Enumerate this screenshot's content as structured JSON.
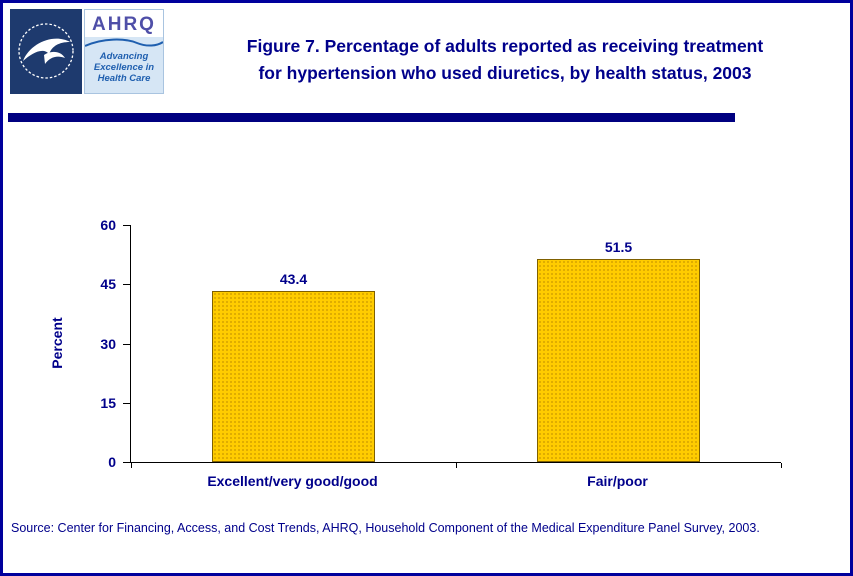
{
  "page": {
    "background": "#FFFFFF",
    "border_color": "#00009C",
    "accent_navy": "#000080",
    "text_navy": "#00008B"
  },
  "header": {
    "title_line1": "Figure 7. Percentage of adults reported as receiving treatment",
    "title_line2": "for hypertension who used diuretics, by health status, 2003"
  },
  "logos": {
    "ahrq_acronym": "AHRQ",
    "ahrq_tagline_line1": "Advancing",
    "ahrq_tagline_line2": "Excellence in",
    "ahrq_tagline_line3": "Health Care"
  },
  "chart_data": {
    "type": "bar",
    "title": "Figure 7. Percentage of adults reported as receiving treatment for hypertension who used diuretics, by health status, 2003",
    "categories": [
      "Excellent/very good/good",
      "Fair/poor"
    ],
    "values": [
      43.4,
      51.5
    ],
    "xlabel": "",
    "ylabel": "Percent",
    "ylim": [
      0,
      60
    ],
    "yticks": [
      0,
      15,
      30,
      45,
      60
    ],
    "grid": false,
    "legend": "none",
    "bar_color": "#FFCC00",
    "bar_border_color": "#7F6000",
    "value_label_color": "#00008B"
  },
  "source": {
    "text": "Source: Center for Financing, Access, and Cost Trends, AHRQ, Household Component of the Medical Expenditure Panel Survey, 2003."
  }
}
